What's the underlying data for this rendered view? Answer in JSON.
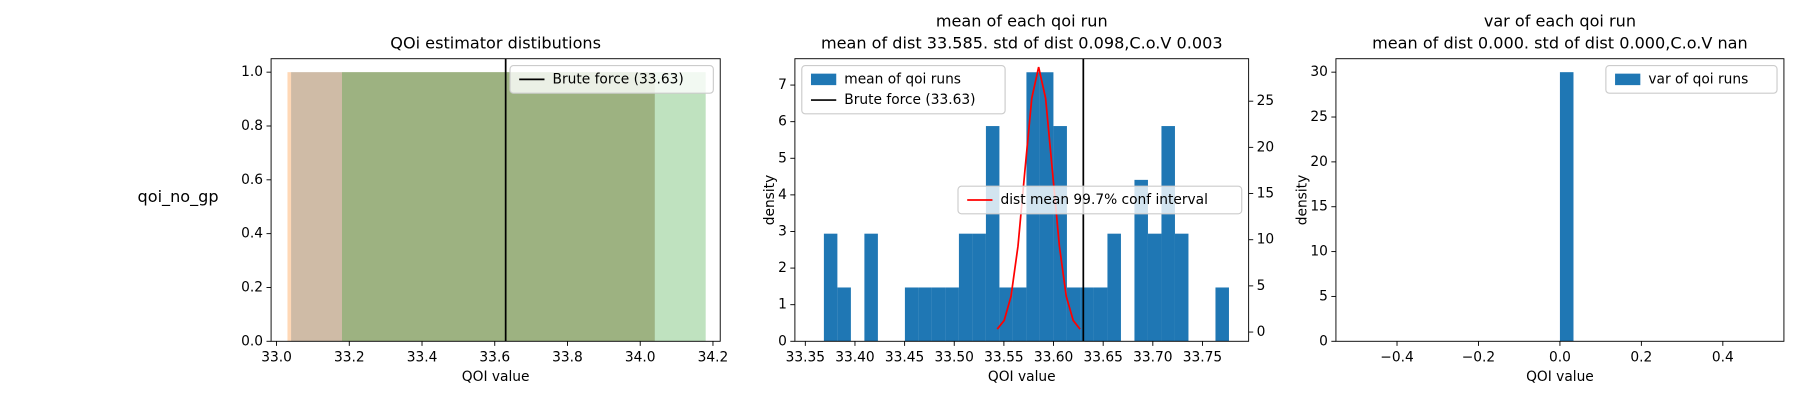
{
  "row_label": "qoi_no_gp",
  "chart_data": [
    {
      "type": "span",
      "title": "QOi estimator distibutions",
      "xlabel": "QOI value",
      "xlim": [
        32.985,
        34.22
      ],
      "xticks": [
        {
          "value": 33.0,
          "label": "33.0"
        },
        33.2,
        33.4,
        33.6,
        33.8,
        {
          "value": 34.0,
          "label": "34.0"
        },
        34.2
      ],
      "ylim": [
        0,
        1.05
      ],
      "yticks": [
        {
          "value": 0,
          "label": "0.0"
        },
        0.2,
        0.4,
        0.6,
        0.8,
        {
          "value": 1,
          "label": "1.0"
        }
      ],
      "spans": [
        {
          "x": [
            33.04,
            34.04
          ],
          "y": 1.0,
          "color": "#1f77b4"
        },
        {
          "x": [
            33.03,
            34.04
          ],
          "y": 1.0,
          "color": "#ff7f0e"
        },
        {
          "x": [
            33.18,
            34.18
          ],
          "y": 1.0,
          "color": "#2ca02c"
        }
      ],
      "vlines": [
        {
          "name": "Brute force (33.63)",
          "x": 33.63,
          "color": "#000000"
        }
      ],
      "legend": "upper right"
    },
    {
      "type": "histogram",
      "title": "mean of each qoi run",
      "subtitle": "mean of dist 33.585. std of dist 0.098,C.o.V 0.003",
      "xlabel": "QOI value",
      "ylabel": "density",
      "bins": [
        33.3687,
        33.3823,
        33.3959,
        33.4095,
        33.4231,
        33.4367,
        33.4503,
        33.4639,
        33.4775,
        33.4911,
        33.5047,
        33.5183,
        33.5319,
        33.5455,
        33.5591,
        33.5727,
        33.5863,
        33.5999,
        33.6135,
        33.6271,
        33.6407,
        33.6543,
        33.6679,
        33.6815,
        33.6951,
        33.7087,
        33.7223,
        33.7359,
        33.7495,
        33.7631,
        33.7767
      ],
      "series": [
        {
          "name": "mean of qoi runs",
          "color": "#1f77b4",
          "values": [
            2.94,
            1.47,
            0,
            2.94,
            0,
            0,
            1.47,
            1.47,
            1.47,
            1.47,
            2.94,
            2.94,
            5.88,
            1.47,
            1.47,
            7.35,
            7.35,
            5.88,
            1.47,
            1.47,
            1.47,
            2.94,
            0,
            4.41,
            2.94,
            5.88,
            2.94,
            0,
            0,
            1.47
          ]
        }
      ],
      "lines": [
        {
          "name": "dist mean 99.7% conf interval",
          "color": "#ff0000",
          "axis": "y2",
          "x": [
            33.5433,
            33.5503,
            33.5572,
            33.5642,
            33.5711,
            33.5781,
            33.585,
            33.592,
            33.5989,
            33.6059,
            33.6128,
            33.6198,
            33.6267
          ],
          "values": [
            0.32,
            1.26,
            3.88,
            9.31,
            17.41,
            25.33,
            28.7,
            25.33,
            17.41,
            9.31,
            3.88,
            1.26,
            0.32
          ]
        }
      ],
      "vlines": [
        {
          "name": "Brute force (33.63)",
          "x": 33.63,
          "color": "#000000"
        }
      ],
      "xlim": [
        33.3395,
        33.7965
      ],
      "xticks": [
        33.35,
        {
          "value": 33.4,
          "label": "33.40"
        },
        33.45,
        {
          "value": 33.5,
          "label": "33.50"
        },
        33.55,
        {
          "value": 33.6,
          "label": "33.60"
        },
        33.65,
        {
          "value": 33.7,
          "label": "33.70"
        },
        33.75
      ],
      "ylim": [
        0,
        7.72
      ],
      "yticks": [
        0,
        1,
        2,
        3,
        4,
        5,
        6,
        7
      ],
      "y2lim": [
        -1,
        29.6
      ],
      "y2ticks": [
        0,
        5,
        10,
        15,
        20,
        25
      ],
      "legend": "upper left",
      "legend2": "center right"
    },
    {
      "type": "histogram",
      "title": "var of each qoi run",
      "subtitle": "mean of dist 0.000. std of dist 0.000,C.o.V nan",
      "xlabel": "QOI value",
      "ylabel": "density",
      "bins": [
        -0.5,
        -0.4667,
        -0.4333,
        -0.4,
        -0.3667,
        -0.3333,
        -0.3,
        -0.2667,
        -0.2333,
        -0.2,
        -0.1667,
        -0.1333,
        -0.1,
        -0.0667,
        -0.0333,
        0,
        0.0333,
        0.0667,
        0.1,
        0.1333,
        0.1667,
        0.2,
        0.2333,
        0.2667,
        0.3,
        0.3333,
        0.3667,
        0.4,
        0.4333,
        0.4667,
        0.5
      ],
      "series": [
        {
          "name": "var of qoi runs",
          "color": "#1f77b4",
          "values": [
            0,
            0,
            0,
            0,
            0,
            0,
            0,
            0,
            0,
            0,
            0,
            0,
            0,
            0,
            0,
            30,
            0,
            0,
            0,
            0,
            0,
            0,
            0,
            0,
            0,
            0,
            0,
            0,
            0,
            0
          ]
        }
      ],
      "xlim": [
        -0.55,
        0.55
      ],
      "xticks": [
        {
          "value": -0.4,
          "label": "−0.4"
        },
        {
          "value": -0.2,
          "label": "−0.2"
        },
        {
          "value": 0,
          "label": "0.0"
        },
        0.2,
        0.4
      ],
      "ylim": [
        0,
        31.5
      ],
      "yticks": [
        0,
        5,
        10,
        15,
        20,
        25,
        30
      ],
      "legend": "upper right"
    }
  ]
}
